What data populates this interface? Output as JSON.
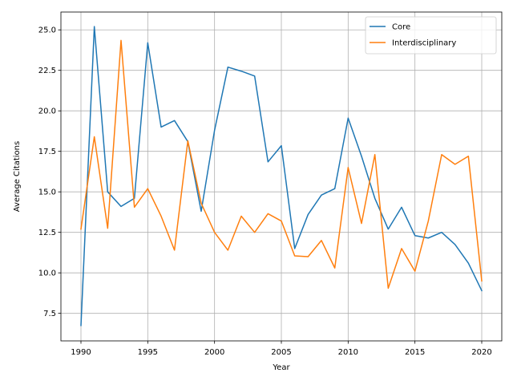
{
  "chart_data": {
    "type": "line",
    "title": "",
    "xlabel": "Year",
    "ylabel": "Average Citations",
    "xlim": [
      1988.5,
      2021.5
    ],
    "ylim": [
      5.8,
      26.1
    ],
    "xticks": [
      1990,
      1995,
      2000,
      2005,
      2010,
      2015,
      2020
    ],
    "yticks": [
      7.5,
      10.0,
      12.5,
      15.0,
      17.5,
      20.0,
      22.5,
      25.0
    ],
    "grid": true,
    "legend_position": "top-right",
    "x": [
      1990,
      1991,
      1992,
      1993,
      1994,
      1995,
      1996,
      1997,
      1998,
      1999,
      2000,
      2001,
      2002,
      2003,
      2004,
      2005,
      2006,
      2007,
      2008,
      2009,
      2010,
      2011,
      2012,
      2013,
      2014,
      2015,
      2016,
      2017,
      2018,
      2019,
      2020
    ],
    "series": [
      {
        "name": "Core",
        "color": "#1f77b4",
        "values": [
          6.75,
          25.2,
          15.0,
          14.1,
          14.6,
          24.2,
          19.0,
          19.4,
          18.1,
          13.8,
          18.8,
          22.7,
          22.45,
          22.15,
          16.85,
          17.85,
          11.5,
          13.6,
          14.8,
          15.2,
          19.55,
          17.2,
          14.6,
          12.7,
          14.05,
          12.3,
          12.15,
          12.5,
          11.75,
          10.6,
          8.9
        ]
      },
      {
        "name": "Interdisciplinary",
        "color": "#ff7f0e",
        "values": [
          12.7,
          18.4,
          12.75,
          24.35,
          14.05,
          15.2,
          13.5,
          11.4,
          18.15,
          14.3,
          12.5,
          11.4,
          13.5,
          12.5,
          13.65,
          13.2,
          11.05,
          11.0,
          12.0,
          10.3,
          16.5,
          13.05,
          17.3,
          9.05,
          11.5,
          10.1,
          13.2,
          17.3,
          16.7,
          17.2,
          9.5
        ]
      }
    ]
  }
}
